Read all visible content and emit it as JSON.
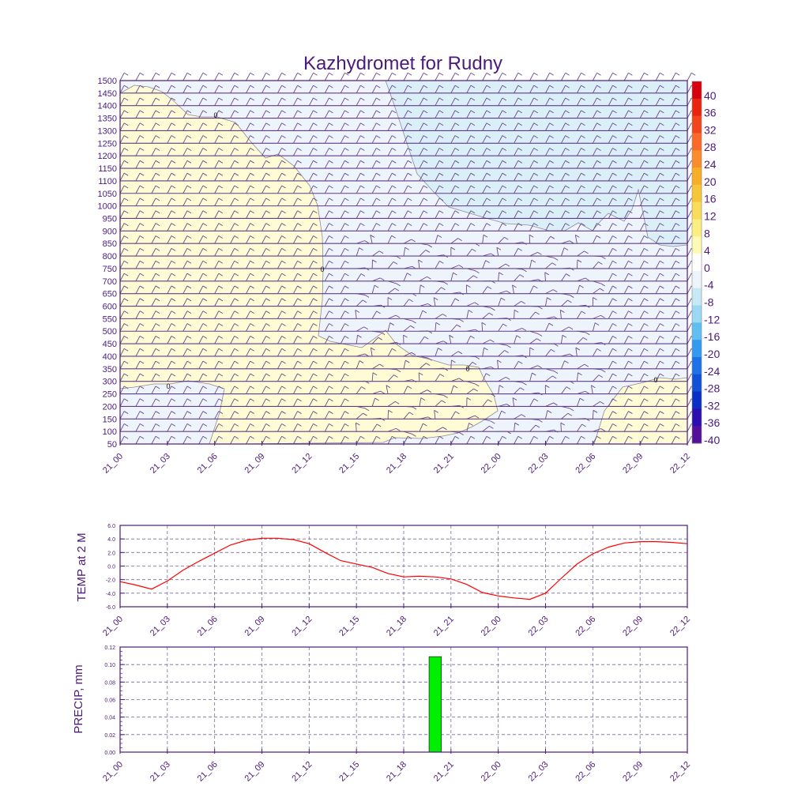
{
  "chart_data": [
    {
      "type": "heatmap",
      "title": "Kazhydromet for Rudny",
      "x_tick_labels": [
        "21_00",
        "21_03",
        "21_06",
        "21_09",
        "21_12",
        "21_15",
        "21_18",
        "21_21",
        "22_00",
        "22_03",
        "22_06",
        "22_09",
        "22_12"
      ],
      "y_tick_labels": [
        "50",
        "100",
        "150",
        "200",
        "250",
        "300",
        "350",
        "400",
        "450",
        "500",
        "550",
        "600",
        "650",
        "700",
        "750",
        "800",
        "850",
        "900",
        "950",
        "1000",
        "1050",
        "1100",
        "1150",
        "1200",
        "1250",
        "1300",
        "1350",
        "1400",
        "1450",
        "1500"
      ],
      "ylim": [
        50,
        1500
      ],
      "colorbar_labels": [
        "40",
        "36",
        "32",
        "28",
        "24",
        "20",
        "16",
        "12",
        "8",
        "4",
        "0",
        "-4",
        "-8",
        "-12",
        "-16",
        "-20",
        "-24",
        "-28",
        "-32",
        "-36",
        "-40"
      ],
      "colorbar_colors": [
        "#d7000f",
        "#e9240f",
        "#f1461c",
        "#f8692a",
        "#fb8c2b",
        "#f7ad25",
        "#f7c637",
        "#f9dc5a",
        "#fbef82",
        "#fdfbb5",
        "#ffffff",
        "#eef4fc",
        "#c7e9f6",
        "#99d9f3",
        "#5fbff0",
        "#339af0",
        "#1c72e6",
        "#1250d6",
        "#0a2fc4",
        "#2a0fae",
        "#55109a"
      ],
      "contour_labels": [
        "0",
        "0",
        "0",
        "0",
        "0"
      ],
      "series": [
        {
          "region": "warm",
          "color": "#fffbd4"
        },
        {
          "region": "cold_light",
          "color": "#eef4fc"
        },
        {
          "region": "cold",
          "color": "#dbeff9"
        }
      ]
    },
    {
      "type": "line",
      "ylabel": "TEMP at 2 M",
      "x_tick_labels": [
        "21_00",
        "21_03",
        "21_06",
        "21_09",
        "21_12",
        "21_15",
        "21_18",
        "21_21",
        "22_00",
        "22_03",
        "22_06",
        "22_09",
        "22_12"
      ],
      "y_tick_labels": [
        "6.0",
        "4.0",
        "2.0",
        "0.0",
        "-2.0",
        "-4.0",
        "-6.0"
      ],
      "ylim": [
        -6,
        6
      ],
      "x_hours": [
        0,
        1,
        2,
        3,
        4,
        5,
        6,
        7,
        8,
        9,
        10,
        11,
        12,
        13,
        14,
        15,
        16,
        17,
        18,
        19,
        20,
        21,
        22,
        23,
        24,
        25,
        26,
        27,
        28,
        29,
        30,
        31,
        32,
        33,
        34,
        35,
        36
      ],
      "values": [
        -2.3,
        -2.8,
        -3.4,
        -2.2,
        -0.6,
        0.7,
        1.9,
        3.1,
        3.8,
        4.1,
        4.1,
        3.9,
        3.3,
        2.0,
        0.8,
        0.3,
        -0.2,
        -1.1,
        -1.6,
        -1.5,
        -1.6,
        -1.9,
        -2.7,
        -3.9,
        -4.4,
        -4.7,
        -4.9,
        -4.0,
        -1.8,
        0.3,
        1.8,
        2.8,
        3.4,
        3.6,
        3.6,
        3.5,
        3.3
      ],
      "color": "#ff0000"
    },
    {
      "type": "bar",
      "ylabel": "PRECIP, mm",
      "x_tick_labels": [
        "21_00",
        "21_03",
        "21_06",
        "21_09",
        "21_12",
        "21_15",
        "21_18",
        "21_21",
        "22_00",
        "22_03",
        "22_06",
        "22_09",
        "22_12"
      ],
      "y_tick_labels": [
        "0.12",
        "0.10",
        "0.08",
        "0.06",
        "0.04",
        "0.02",
        "0.00"
      ],
      "ylim": [
        0,
        0.12
      ],
      "bars": [
        {
          "hour": 20,
          "value": 0.109
        }
      ],
      "color": "#00ee00"
    }
  ]
}
